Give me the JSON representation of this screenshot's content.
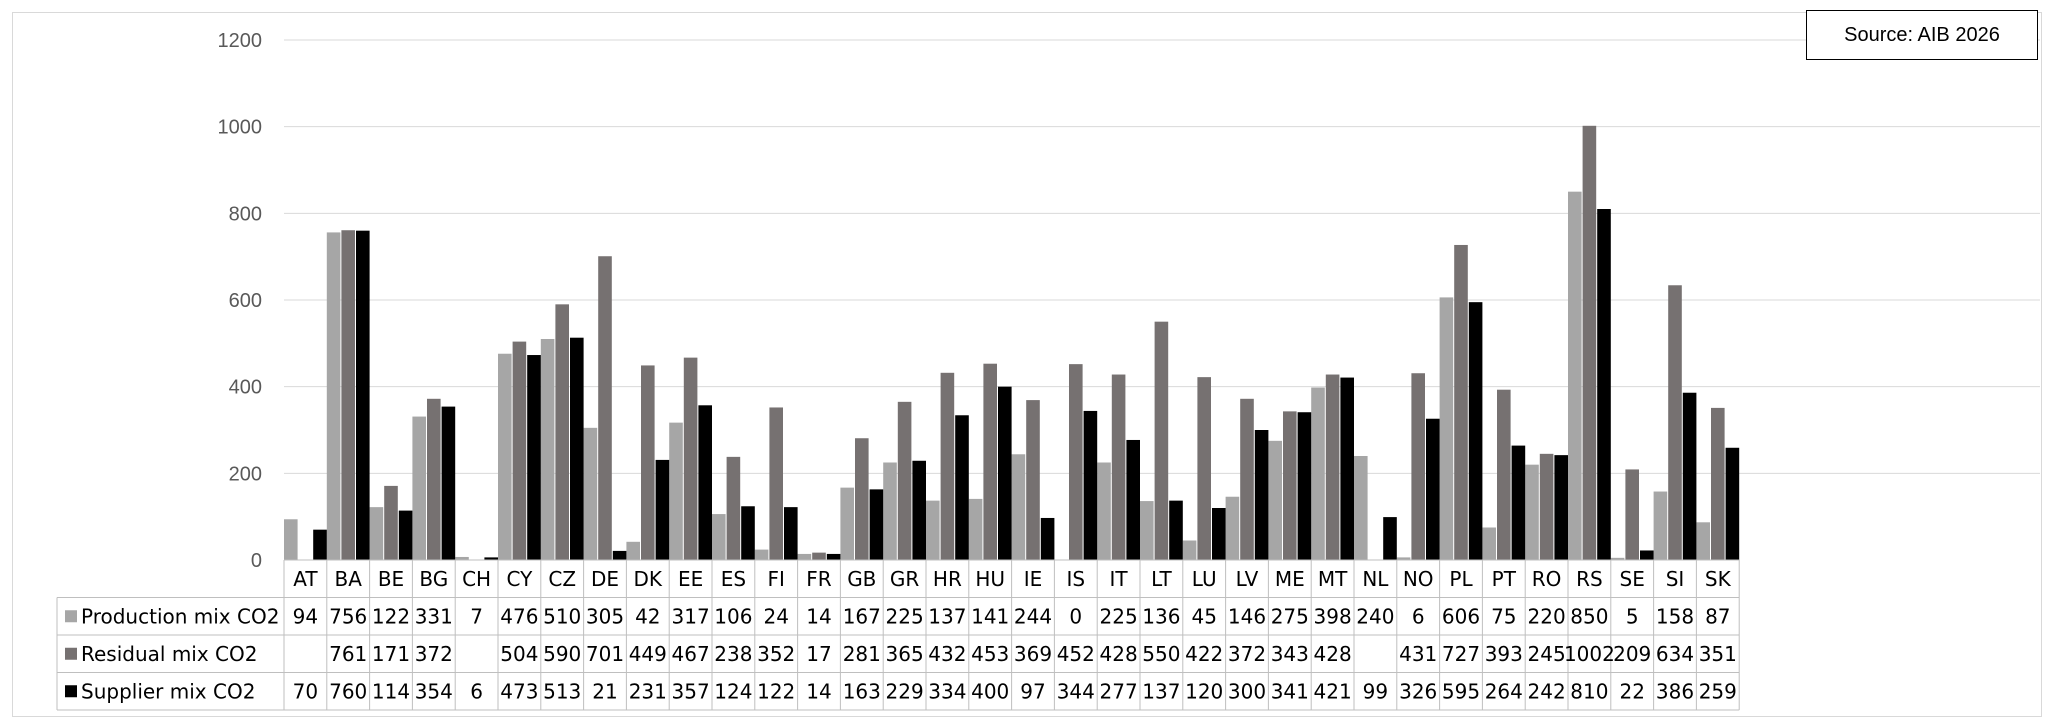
{
  "source_text": "Source: AIB 2026",
  "chart_data": {
    "type": "bar",
    "categories": [
      "AT",
      "BA",
      "BE",
      "BG",
      "CH",
      "CY",
      "CZ",
      "DE",
      "DK",
      "EE",
      "ES",
      "FI",
      "FR",
      "GB",
      "GR",
      "HR",
      "HU",
      "IE",
      "IS",
      "IT",
      "LT",
      "LU",
      "LV",
      "ME",
      "MT",
      "NL",
      "NO",
      "PL",
      "PT",
      "RO",
      "RS",
      "SE",
      "SI",
      "SK"
    ],
    "series": [
      {
        "name": "Production mix CO2",
        "color": "#a6a6a6",
        "values": [
          94,
          756,
          122,
          331,
          7,
          476,
          510,
          305,
          42,
          317,
          106,
          24,
          14,
          167,
          225,
          137,
          141,
          244,
          0,
          225,
          136,
          45,
          146,
          275,
          398,
          240,
          6,
          606,
          75,
          220,
          850,
          5,
          158,
          87
        ]
      },
      {
        "name": "Residual mix CO2",
        "color": "#767171",
        "values": [
          null,
          761,
          171,
          372,
          null,
          504,
          590,
          701,
          449,
          467,
          238,
          352,
          17,
          281,
          365,
          432,
          453,
          369,
          452,
          428,
          550,
          422,
          372,
          343,
          428,
          null,
          431,
          727,
          393,
          245,
          1002,
          209,
          634,
          351
        ]
      },
      {
        "name": "Supplier mix CO2",
        "color": "#000000",
        "values": [
          70,
          760,
          114,
          354,
          6,
          473,
          513,
          21,
          231,
          357,
          124,
          122,
          14,
          163,
          229,
          334,
          400,
          97,
          344,
          277,
          137,
          120,
          300,
          341,
          421,
          99,
          326,
          595,
          264,
          242,
          810,
          22,
          386,
          259
        ]
      }
    ],
    "ylim": [
      0,
      1200
    ],
    "yticks": [
      0,
      200,
      400,
      600,
      800,
      1000,
      1200
    ],
    "grid": true,
    "legend": "data-table",
    "title": "",
    "xlabel": "",
    "ylabel": ""
  }
}
